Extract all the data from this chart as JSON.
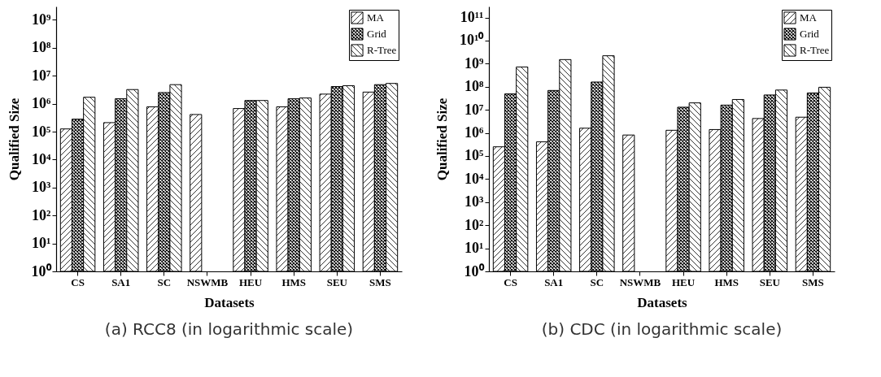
{
  "chart_data": [
    {
      "type": "bar",
      "title": "(a) RCC8 (in logarithmic scale)",
      "xlabel": "Datasets",
      "ylabel": "Qualified Size",
      "categories": [
        "CS",
        "SA1",
        "SC",
        "NSWMB",
        "HEU",
        "HMS",
        "SEU",
        "SMS"
      ],
      "log": true,
      "ylim": [
        1,
        3000000000
      ],
      "yticks": [
        {
          "value": 1,
          "label": "10⁰"
        },
        {
          "value": 10,
          "label": "10¹"
        },
        {
          "value": 100,
          "label": "10²"
        },
        {
          "value": 1000,
          "label": "10³"
        },
        {
          "value": 10000,
          "label": "10⁴"
        },
        {
          "value": 100000,
          "label": "10⁵"
        },
        {
          "value": 1000000,
          "label": "10⁶"
        },
        {
          "value": 10000000,
          "label": "10⁷"
        },
        {
          "value": 100000000,
          "label": "10⁸"
        },
        {
          "value": 1000000000,
          "label": "10⁹"
        }
      ],
      "legend": "top right",
      "grid": false,
      "series": [
        {
          "name": "MA",
          "color": "#000000",
          "values": [
            125000,
            210000,
            770000,
            410000,
            670000,
            770000,
            2200000,
            2600000
          ]
        },
        {
          "name": "Grid",
          "color": "#000000",
          "values": [
            280000,
            1500000,
            2500000,
            null,
            1300000,
            1500000,
            4100000,
            4800000
          ]
        },
        {
          "name": "R-Tree",
          "color": "#000000",
          "values": [
            1700000,
            3200000,
            4800000,
            null,
            1300000,
            1600000,
            4400000,
            5300000
          ]
        }
      ]
    },
    {
      "type": "bar",
      "title": "(b) CDC (in logarithmic scale)",
      "xlabel": "Datasets",
      "ylabel": "Qualified Size",
      "categories": [
        "CS",
        "SA1",
        "SC",
        "NSWMB",
        "HEU",
        "HMS",
        "SEU",
        "SMS"
      ],
      "log": true,
      "ylim": [
        1,
        300000000000
      ],
      "yticks": [
        {
          "value": 1,
          "label": "10⁰"
        },
        {
          "value": 10,
          "label": "10¹"
        },
        {
          "value": 100,
          "label": "10²"
        },
        {
          "value": 1000,
          "label": "10³"
        },
        {
          "value": 10000,
          "label": "10⁴"
        },
        {
          "value": 100000,
          "label": "10⁵"
        },
        {
          "value": 1000000,
          "label": "10⁶"
        },
        {
          "value": 10000000,
          "label": "10⁷"
        },
        {
          "value": 100000000,
          "label": "10⁸"
        },
        {
          "value": 1000000000,
          "label": "10⁹"
        },
        {
          "value": 10000000000,
          "label": "10¹⁰"
        },
        {
          "value": 100000000000,
          "label": "10¹¹"
        }
      ],
      "legend": "top right",
      "grid": false,
      "series": [
        {
          "name": "MA",
          "color": "#000000",
          "values": [
            250000,
            410000,
            1600000,
            810000,
            1300000,
            1400000,
            4200000,
            4800000
          ]
        },
        {
          "name": "Grid",
          "color": "#000000",
          "values": [
            49000000,
            69000000,
            160000000,
            null,
            13000000,
            16000000,
            44000000,
            54000000
          ]
        },
        {
          "name": "R-Tree",
          "color": "#000000",
          "values": [
            720000000,
            1500000000,
            2200000000,
            null,
            20000000,
            28000000,
            72000000,
            95000000
          ]
        }
      ]
    }
  ]
}
